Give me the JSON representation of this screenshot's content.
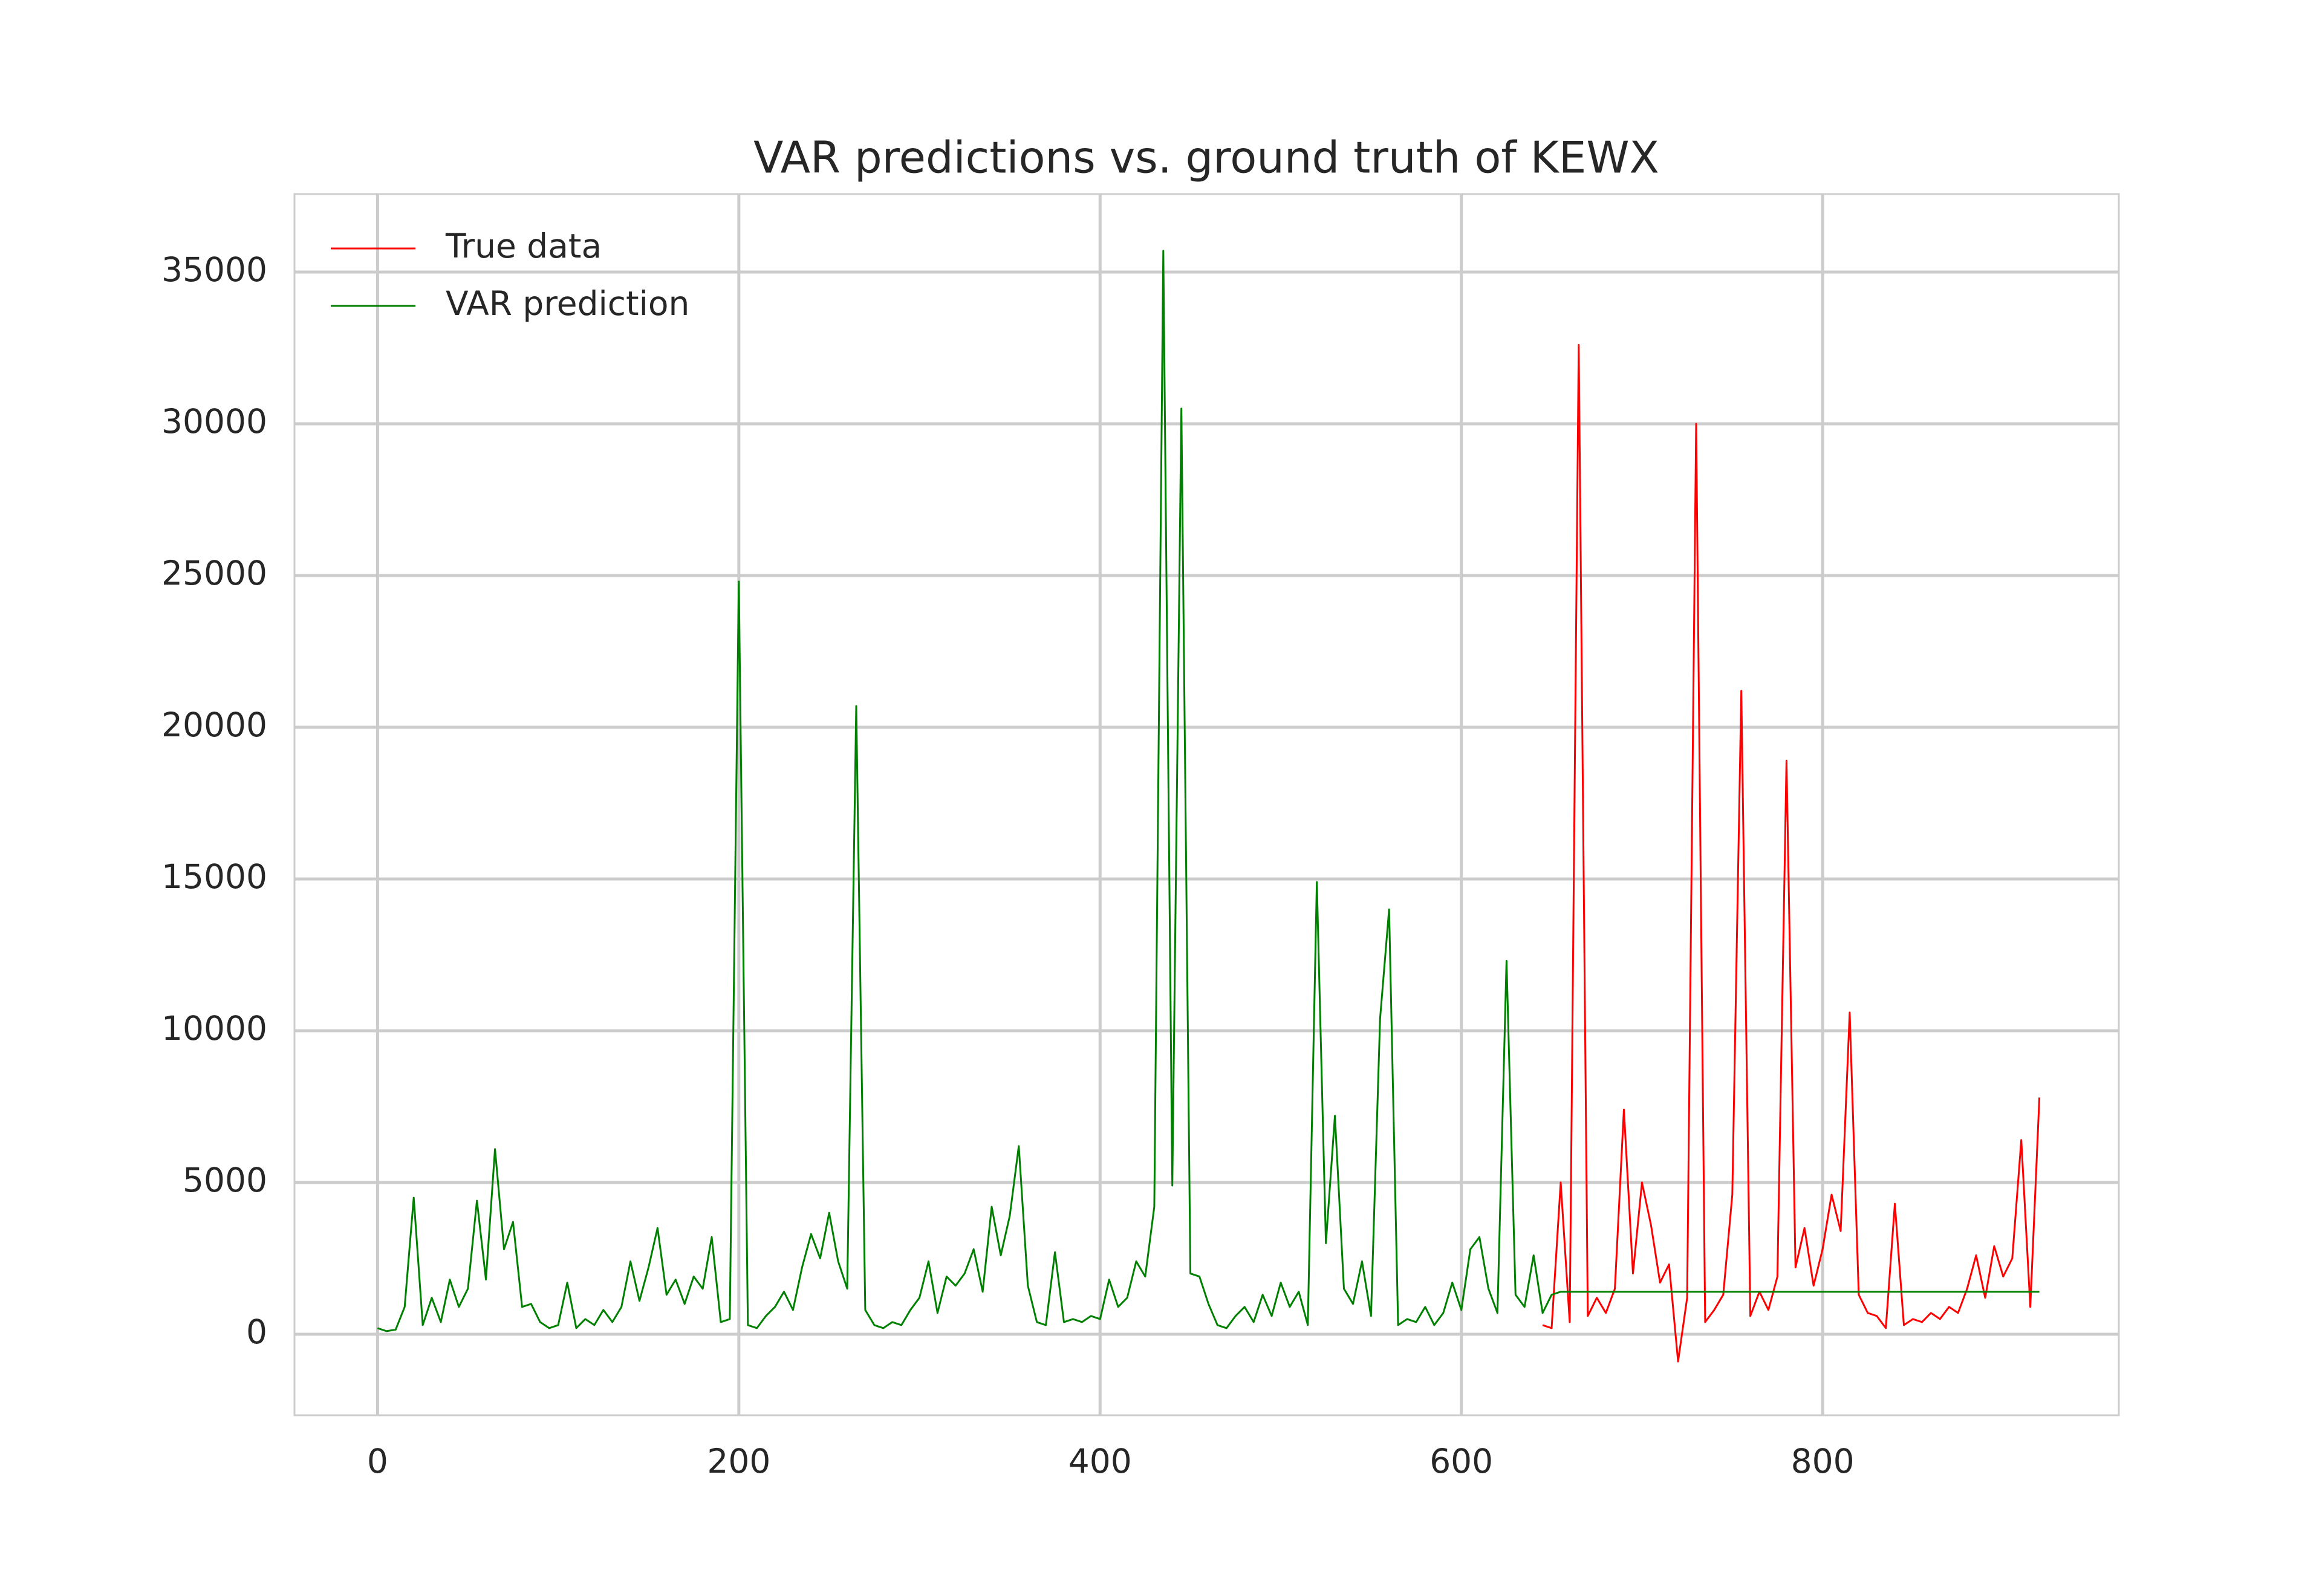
{
  "chart_data": {
    "type": "line",
    "title": "VAR predictions vs. ground truth of KEWX",
    "x": [
      0,
      5,
      10,
      15,
      20,
      25,
      30,
      35,
      40,
      45,
      50,
      55,
      60,
      65,
      70,
      75,
      80,
      85,
      90,
      95,
      100,
      105,
      110,
      115,
      120,
      125,
      130,
      135,
      140,
      145,
      150,
      155,
      160,
      165,
      170,
      175,
      180,
      185,
      190,
      195,
      200,
      205,
      210,
      215,
      220,
      225,
      230,
      235,
      240,
      245,
      250,
      255,
      260,
      265,
      270,
      275,
      280,
      285,
      290,
      295,
      300,
      305,
      310,
      315,
      320,
      325,
      330,
      335,
      340,
      345,
      350,
      355,
      360,
      365,
      370,
      375,
      380,
      385,
      390,
      395,
      400,
      405,
      410,
      415,
      420,
      425,
      430,
      435,
      440,
      445,
      450,
      455,
      460,
      465,
      470,
      475,
      480,
      485,
      490,
      495,
      500,
      505,
      510,
      515,
      520,
      525,
      530,
      535,
      540,
      545,
      550,
      555,
      560,
      565,
      570,
      575,
      580,
      585,
      590,
      595,
      600,
      605,
      610,
      615,
      620,
      625,
      630,
      635,
      640,
      645,
      650,
      655,
      660,
      665,
      670,
      675,
      680,
      685,
      690,
      695,
      700,
      705,
      710,
      715,
      720,
      725,
      730,
      735,
      740,
      745,
      750,
      755,
      760,
      765,
      770,
      775,
      780,
      785,
      790,
      795,
      800,
      805,
      810,
      815,
      820,
      825,
      830,
      835,
      840,
      845,
      850,
      855,
      860,
      865,
      870,
      875,
      880,
      885,
      890,
      895,
      900,
      905,
      910,
      915,
      920
    ],
    "series": [
      {
        "name": "True data",
        "color": "#ff0000",
        "values": [
          null,
          null,
          null,
          null,
          null,
          null,
          null,
          null,
          null,
          null,
          null,
          null,
          null,
          null,
          null,
          null,
          null,
          null,
          null,
          null,
          null,
          null,
          null,
          null,
          null,
          null,
          null,
          null,
          null,
          null,
          null,
          null,
          null,
          null,
          null,
          null,
          null,
          null,
          null,
          null,
          null,
          null,
          null,
          null,
          null,
          null,
          null,
          null,
          null,
          null,
          null,
          null,
          null,
          null,
          null,
          null,
          null,
          null,
          null,
          null,
          null,
          null,
          null,
          null,
          null,
          null,
          null,
          null,
          null,
          null,
          null,
          null,
          null,
          null,
          null,
          null,
          null,
          null,
          null,
          null,
          null,
          null,
          null,
          null,
          null,
          null,
          null,
          null,
          null,
          null,
          null,
          null,
          null,
          null,
          null,
          null,
          null,
          null,
          null,
          null,
          null,
          null,
          null,
          null,
          null,
          null,
          null,
          null,
          null,
          null,
          null,
          null,
          null,
          null,
          null,
          null,
          null,
          null,
          null,
          null,
          null,
          null,
          null,
          null,
          null,
          null,
          null,
          null,
          null,
          300,
          200,
          5000,
          400,
          32600,
          600,
          1200,
          700,
          1500,
          7400,
          2000,
          5000,
          3600,
          1700,
          2300,
          -900,
          1200,
          30000,
          400,
          800,
          1300,
          4600,
          21200,
          600,
          1400,
          800,
          1900,
          18900,
          2200,
          3500,
          1600,
          2800,
          4600,
          3400,
          10600,
          1300,
          700,
          600,
          200,
          4300,
          300,
          500,
          400,
          700,
          500,
          900,
          700,
          1500,
          2600,
          1200,
          2900,
          1900,
          2500,
          6400,
          900,
          7800
        ]
      },
      {
        "name": "VAR prediction",
        "color": "#008000",
        "values": [
          200,
          100,
          150,
          900,
          4500,
          300,
          1200,
          400,
          1800,
          900,
          1500,
          4400,
          1800,
          6100,
          2800,
          3700,
          900,
          1000,
          400,
          200,
          300,
          1700,
          200,
          500,
          300,
          800,
          400,
          900,
          2400,
          1100,
          2200,
          3500,
          1300,
          1800,
          1000,
          1900,
          1500,
          3200,
          400,
          500,
          24800,
          300,
          200,
          600,
          900,
          1400,
          800,
          2200,
          3300,
          2500,
          4000,
          2400,
          1500,
          20700,
          800,
          300,
          200,
          400,
          300,
          800,
          1200,
          2400,
          700,
          1900,
          1600,
          2000,
          2800,
          1400,
          4200,
          2600,
          3900,
          6200,
          1600,
          400,
          300,
          2700,
          400,
          500,
          400,
          600,
          500,
          1800,
          900,
          1200,
          2400,
          1900,
          4200,
          35700,
          4900,
          30500,
          2000,
          1900,
          1000,
          300,
          200,
          600,
          900,
          400,
          1300,
          600,
          1700,
          900,
          1400,
          300,
          14900,
          3000,
          7200,
          1500,
          1000,
          2400,
          600,
          10400,
          14000,
          300,
          500,
          400,
          900,
          300,
          700,
          1700,
          800,
          2800,
          3200,
          1500,
          700,
          12300,
          1300,
          900,
          2600,
          700,
          1300,
          1400,
          1400,
          1400,
          1400,
          1400,
          1400,
          1400,
          1400,
          1400,
          1400,
          1400,
          1400,
          1400,
          1400,
          1400,
          1400,
          1400,
          1400,
          1400,
          1400,
          1400,
          1400,
          1400,
          1400,
          1400,
          1400,
          1400,
          1400,
          1400,
          1400,
          1400,
          1400,
          1400,
          1400,
          1400,
          1400,
          1400,
          1400,
          1400,
          1400,
          1400,
          1400,
          1400,
          1400,
          1400,
          1400,
          1400,
          1400,
          1400,
          1400,
          1400,
          1400,
          1400,
          1400
        ]
      }
    ],
    "xlim": [
      -46,
      964
    ],
    "ylim": [
      -2670,
      37570
    ],
    "xticks": [
      0,
      200,
      400,
      600,
      800
    ],
    "yticks": [
      0,
      5000,
      10000,
      15000,
      20000,
      25000,
      30000,
      35000
    ],
    "grid": true,
    "legend": "upper left"
  }
}
